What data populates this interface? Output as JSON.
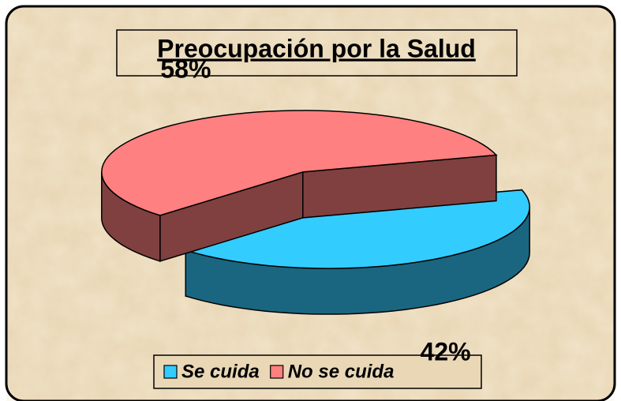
{
  "chart_data": {
    "type": "pie",
    "title": "Preocupación por la Salud",
    "categories": [
      "Se cuida",
      "No se cuida"
    ],
    "values": [
      42,
      58
    ],
    "value_labels": [
      "42%",
      "58%"
    ],
    "colors": [
      "#33ccff",
      "#ff8080"
    ],
    "legend": "bottom"
  }
}
